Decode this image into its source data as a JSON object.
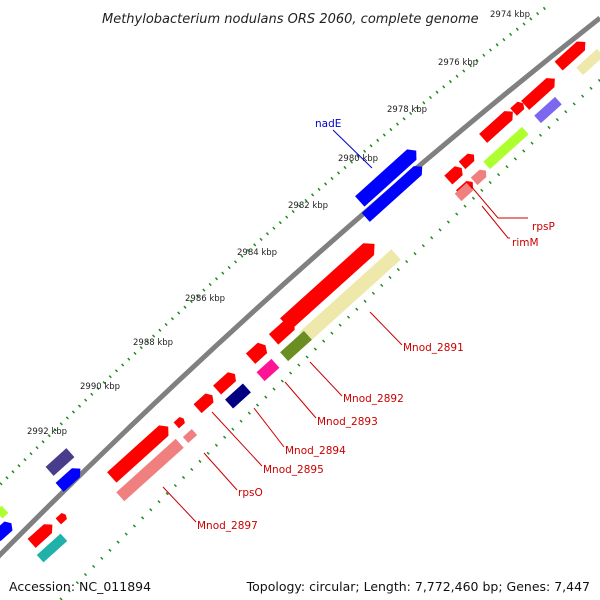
{
  "title": "Methylobacterium nodulans ORS 2060, complete genome",
  "footer": {
    "accession": "Accession: NC_011894",
    "summary": "Topology: circular; Length: 7,772,460 bp; Genes: 7,447"
  },
  "ticks": [
    "2974 kbp",
    "2976 kbp",
    "2978 kbp",
    "2980 kbp",
    "2982 kbp",
    "2984 kbp",
    "2986 kbp",
    "2988 kbp",
    "2990 kbp",
    "2992 kbp"
  ],
  "genes": [
    "nadE",
    "rpsP",
    "rimM",
    "Mnod_2891",
    "Mnod_2892",
    "Mnod_2893",
    "Mnod_2894",
    "Mnod_2895",
    "rpsO",
    "Mnod_2897"
  ],
  "colors": {
    "backbone": "#808080",
    "tick_dots": "#1e8c1e",
    "red_gene": "#ff0000",
    "light_red_gene": "#f08080",
    "blue_gene": "#0000ff",
    "navy_gene": "#000080",
    "purple_gene": "#483d8b",
    "slate_gene": "#7b68ee",
    "yellow_gene": "#eee8aa",
    "olive_gene": "#6b8e23",
    "green_gene": "#adff2f",
    "magenta_gene": "#ff1493",
    "teal_gene": "#20b2aa",
    "label_red": "#cc0000",
    "label_blue": "#0000cc"
  }
}
